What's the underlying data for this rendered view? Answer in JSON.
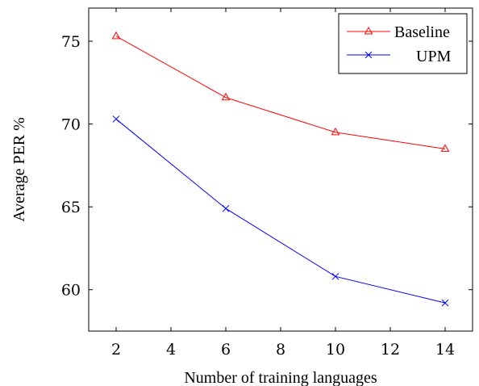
{
  "chart_data": {
    "type": "line",
    "title": "",
    "xlabel": "Number of training languages",
    "ylabel": "Average PER %",
    "xlim": [
      1,
      15
    ],
    "ylim": [
      57.5,
      77
    ],
    "xticks": [
      2,
      4,
      6,
      8,
      10,
      12,
      14
    ],
    "yticks": [
      60,
      65,
      70,
      75
    ],
    "grid": false,
    "legend_position": "top-right",
    "x": [
      2,
      6,
      10,
      14
    ],
    "series": [
      {
        "name": "Baseline",
        "values": [
          75.3,
          71.6,
          69.5,
          68.5
        ],
        "color": "#ff0000",
        "marker": "triangle"
      },
      {
        "name": "UPM",
        "values": [
          70.3,
          64.9,
          60.8,
          59.2
        ],
        "color": "#0000ff",
        "marker": "x"
      }
    ]
  }
}
